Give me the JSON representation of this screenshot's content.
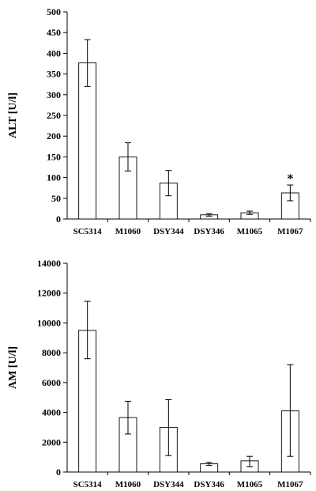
{
  "chart_data": [
    {
      "type": "bar",
      "ylabel": "ALT [U/l]",
      "xlabel": "",
      "title": "",
      "ylim": [
        0,
        500
      ],
      "yticks": [
        "0",
        "50",
        "100",
        "150",
        "200",
        "250",
        "300",
        "350",
        "400",
        "450",
        "500"
      ],
      "categories": [
        "SC5314",
        "M1060",
        "DSY344",
        "DSY346",
        "M1065",
        "M1067"
      ],
      "values": [
        377,
        150,
        87,
        10,
        15,
        63
      ],
      "error_low": [
        320,
        116,
        56,
        7,
        11,
        44
      ],
      "error_high": [
        433,
        184,
        117,
        13,
        19,
        82
      ],
      "annotations": [
        {
          "category": "M1067",
          "text": "*"
        }
      ],
      "grid": false
    },
    {
      "type": "bar",
      "ylabel": "AM [U/l]",
      "xlabel": "",
      "title": "",
      "ylim": [
        0,
        14000
      ],
      "yticks": [
        "0",
        "2000",
        "4000",
        "6000",
        "8000",
        "10000",
        "12000",
        "14000"
      ],
      "categories": [
        "SC5314",
        "M1060",
        "DSY344",
        "DSY346",
        "M1065",
        "M1067"
      ],
      "values": [
        9500,
        3650,
        3000,
        550,
        750,
        4100
      ],
      "error_low": [
        7600,
        2550,
        1100,
        450,
        350,
        1050
      ],
      "error_high": [
        11450,
        4750,
        4850,
        650,
        1050,
        7200
      ],
      "annotations": [],
      "grid": false
    }
  ]
}
